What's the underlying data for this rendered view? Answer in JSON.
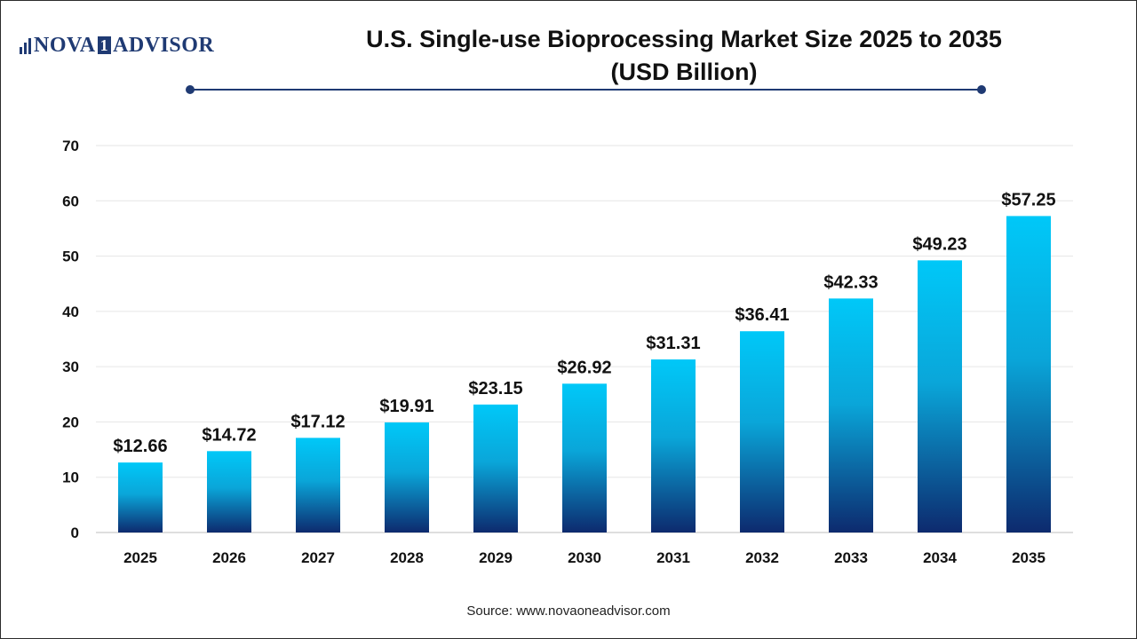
{
  "brand": {
    "left": "NOVA",
    "mid": "1",
    "right": "ADVISOR"
  },
  "header": {
    "title_line1": "U.S. Single-use Bioprocessing Market Size 2025 to 2035",
    "title_line2": "(USD Billion)"
  },
  "source": "Source: www.novaoneadvisor.com",
  "colors": {
    "bar_top": "#00c8f8",
    "bar_bottom": "#0d2a6e",
    "accent": "#1f3a73"
  },
  "chart_data": {
    "type": "bar",
    "title": "U.S. Single-use Bioprocessing Market Size 2025 to 2035 (USD Billion)",
    "xlabel": "",
    "ylabel": "",
    "categories": [
      "2025",
      "2026",
      "2027",
      "2028",
      "2029",
      "2030",
      "2031",
      "2032",
      "2033",
      "2034",
      "2035"
    ],
    "values": [
      12.66,
      14.72,
      17.12,
      19.91,
      23.15,
      26.92,
      31.31,
      36.41,
      42.33,
      49.23,
      57.25
    ],
    "data_labels": [
      "$12.66",
      "$14.72",
      "$17.12",
      "$19.91",
      "$23.15",
      "$26.92",
      "$31.31",
      "$36.41",
      "$42.33",
      "$49.23",
      "$57.25"
    ],
    "ylim": [
      0,
      70
    ],
    "yticks": [
      0,
      10,
      20,
      30,
      40,
      50,
      60,
      70
    ],
    "grid": true,
    "legend": "none"
  }
}
